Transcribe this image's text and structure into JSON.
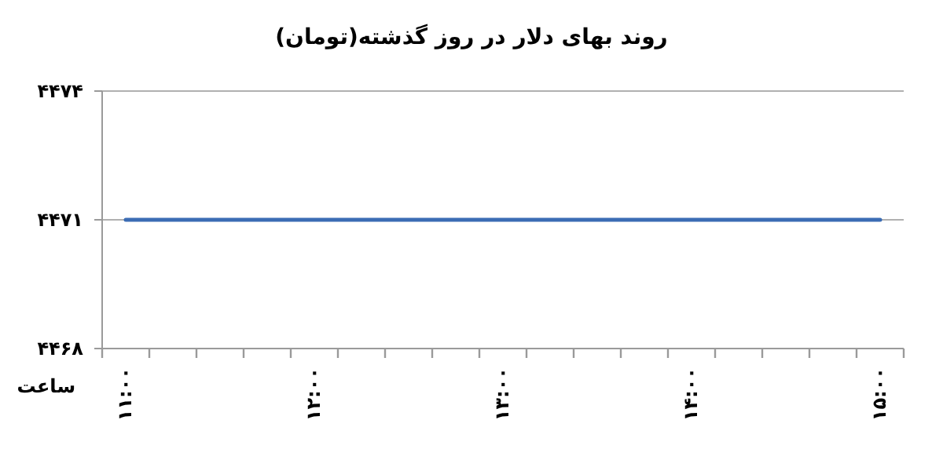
{
  "chart_data": {
    "type": "line",
    "title": "روند بهای دلار در روز گذشته(تومان)",
    "xlabel": "ساعت",
    "categories": [
      "۱۱:۰۰",
      null,
      null,
      null,
      "۱۲:۰۰",
      null,
      null,
      null,
      "۱۳:۰۰",
      null,
      null,
      null,
      "۱۴:۰۰",
      null,
      null,
      null,
      "۱۵:۰۰"
    ],
    "series": [
      {
        "color": "#3b6cb4",
        "values": [
          4471,
          4471,
          4471,
          4471,
          4471,
          4471,
          4471,
          4471,
          4471,
          4471,
          4471,
          4471,
          4471,
          4471,
          4471,
          4471,
          4471
        ]
      }
    ],
    "ylim": [
      4468,
      4474
    ],
    "yticks": [
      {
        "value": 4468,
        "label": "۴۴۶۸"
      },
      {
        "value": 4471,
        "label": "۴۴۷۱"
      },
      {
        "value": 4474,
        "label": "۴۴۷۴"
      }
    ],
    "grid": "y",
    "marker": "none",
    "line_style": "solid"
  }
}
